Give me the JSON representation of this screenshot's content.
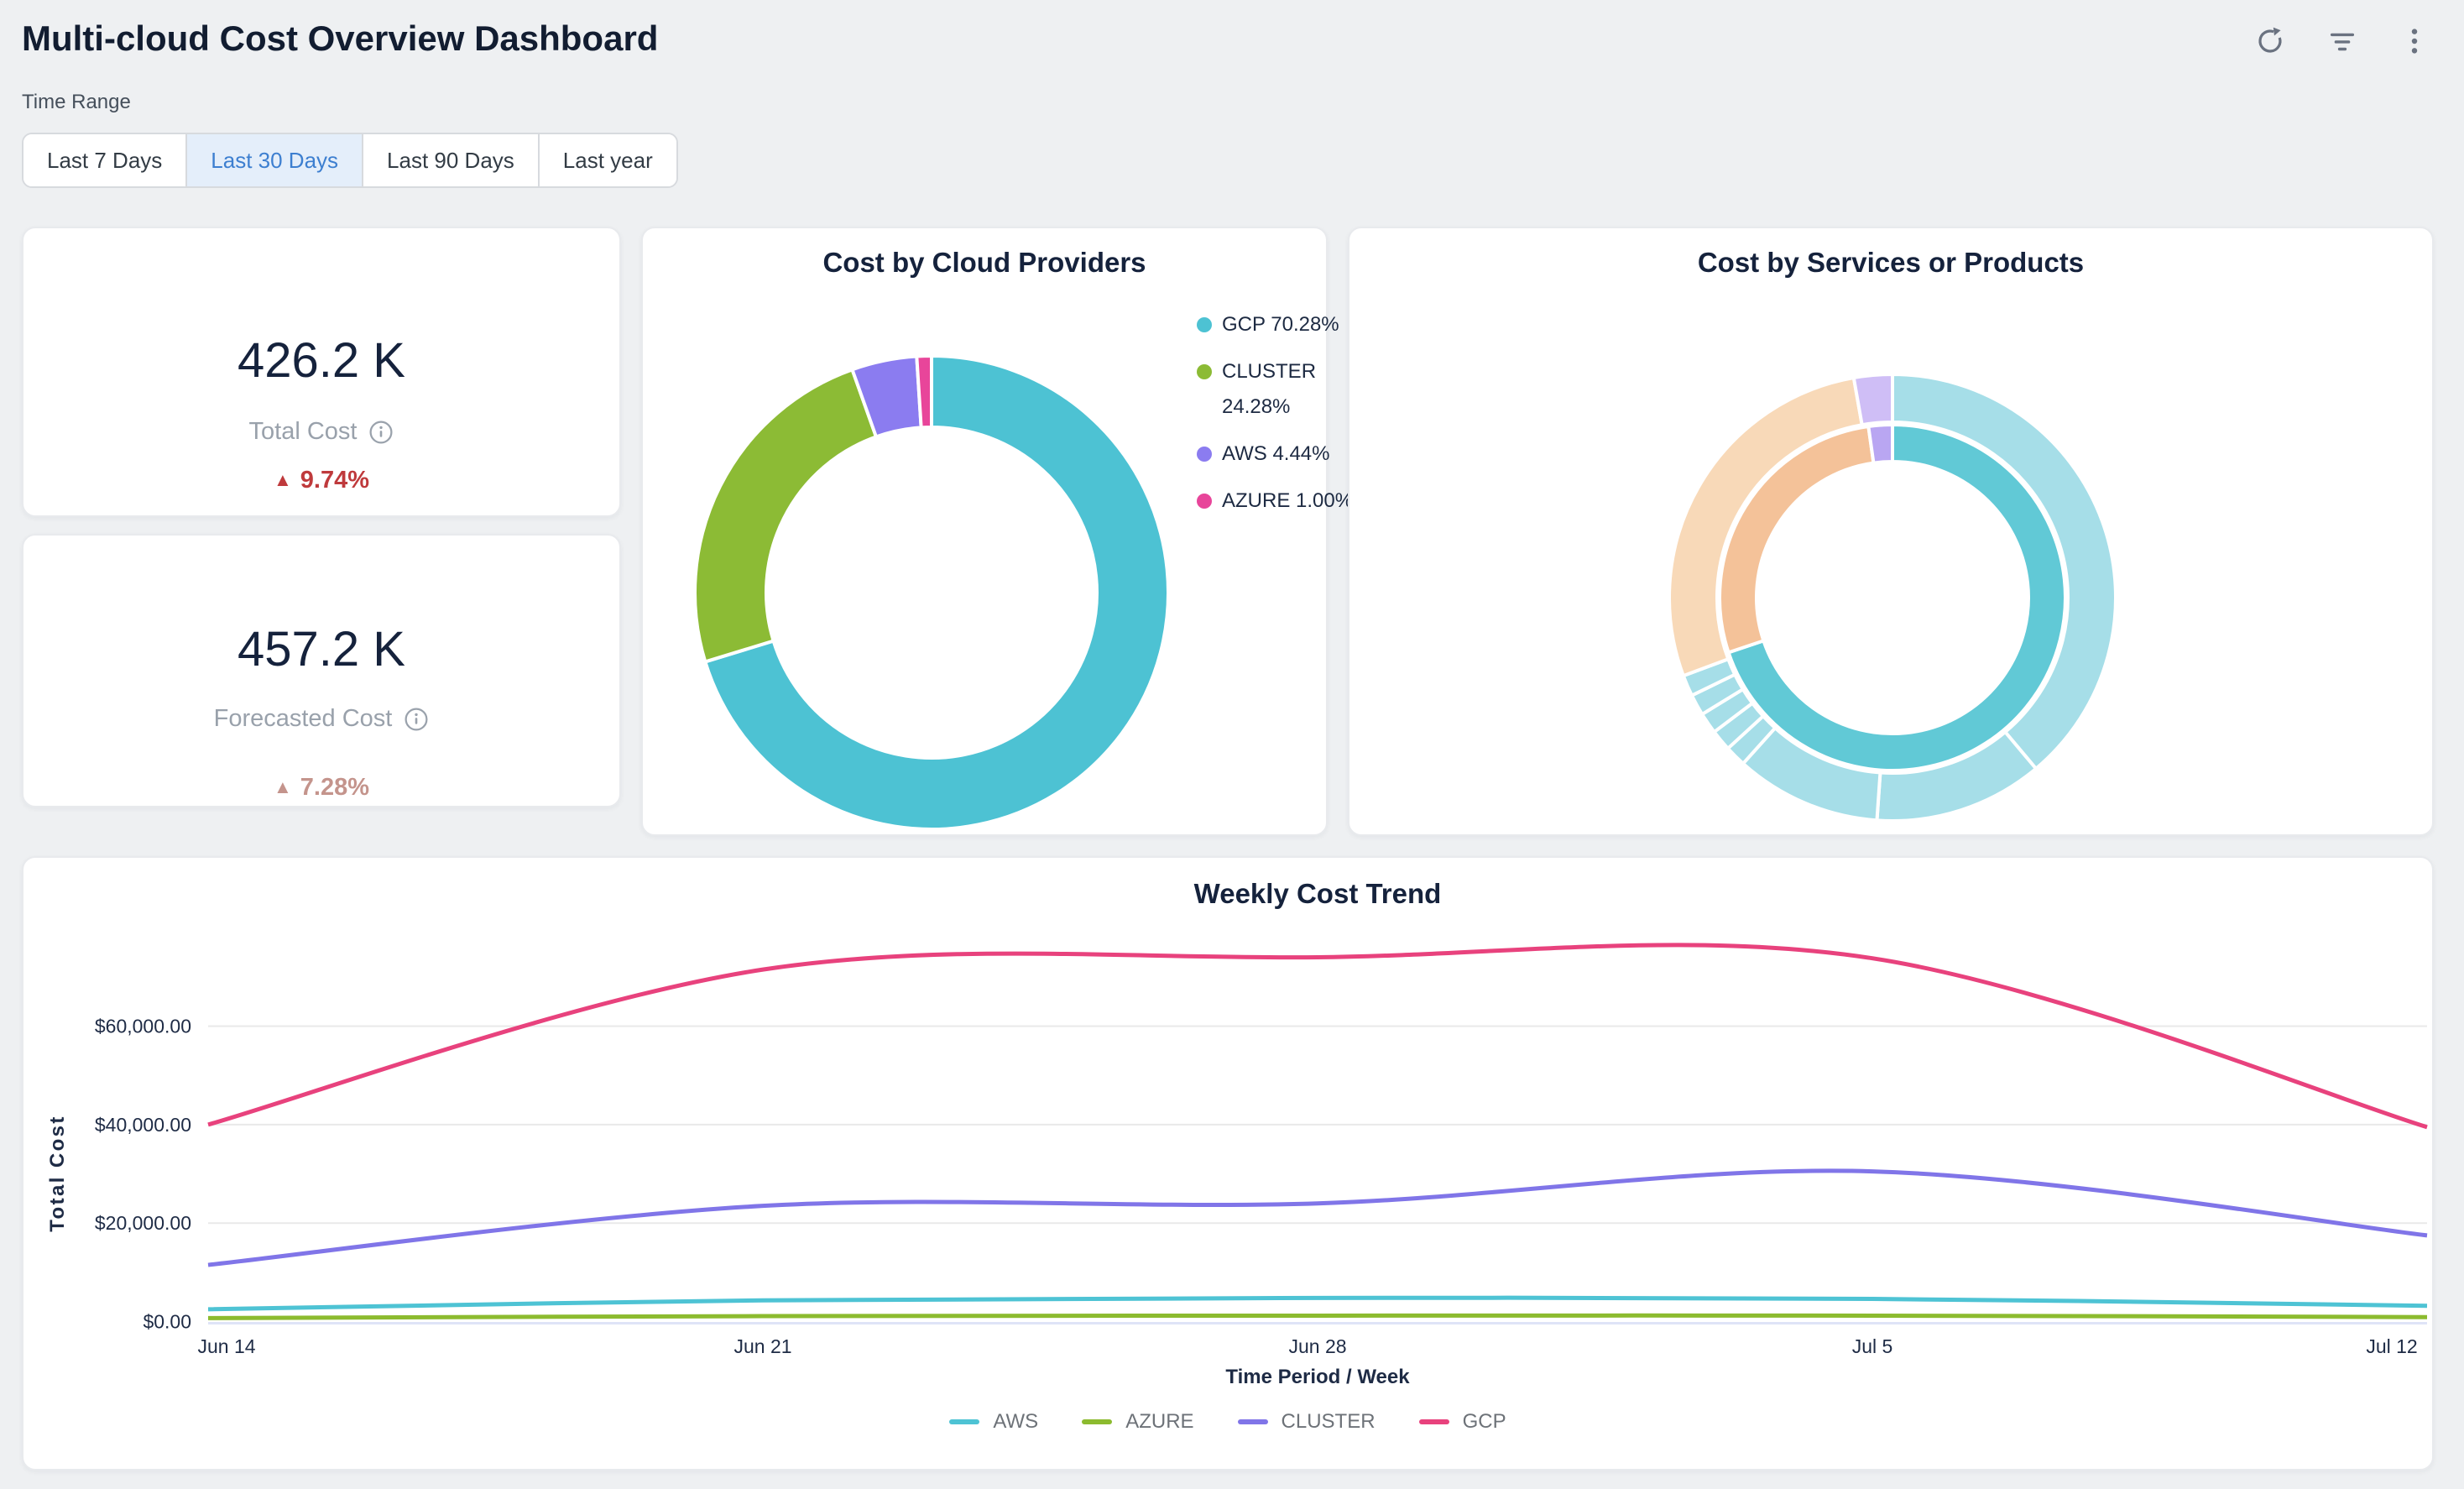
{
  "header": {
    "title": "Multi-cloud Cost Overview Dashboard",
    "icons": [
      "refresh",
      "filter",
      "kebab-menu"
    ]
  },
  "time_range": {
    "label": "Time Range",
    "options": [
      "Last 7 Days",
      "Last 30 Days",
      "Last 90 Days",
      "Last year"
    ],
    "selected": "Last 30 Days"
  },
  "kpis": [
    {
      "value": "426.2 K",
      "label": "Total Cost",
      "delta": "9.74%",
      "direction": "up",
      "delta_color": "#bf3a3c"
    },
    {
      "value": "457.2 K",
      "label": "Forecasted Cost",
      "delta": "7.28%",
      "direction": "up",
      "delta_color": "#c4948c"
    }
  ],
  "chart_data": [
    {
      "type": "pie",
      "variant": "donut",
      "title": "Cost by Cloud Providers",
      "categories": [
        "GCP",
        "CLUSTER",
        "AWS",
        "AZURE"
      ],
      "values": [
        70.28,
        24.28,
        4.44,
        1.0
      ],
      "unit": "percent",
      "colors": [
        "#4dc2d3",
        "#8cbb35",
        "#8b7cf0",
        "#e8459a"
      ],
      "legend_labels": [
        "GCP 70.28%",
        "CLUSTER 24.28%",
        "AWS 4.44%",
        "AZURE 1.00%"
      ],
      "legend_position": "right"
    },
    {
      "type": "pie",
      "variant": "sunburst",
      "title": "Cost by Services or Products",
      "rings": [
        {
          "level": "inner",
          "segments": [
            {
              "start": 0,
              "end": 251.5,
              "color": "#61c9d6"
            },
            {
              "start": 251.5,
              "end": 352,
              "color": "#f4c299"
            },
            {
              "start": 352,
              "end": 360,
              "color": "#b9a6f2"
            }
          ]
        },
        {
          "level": "outer",
          "segments": [
            {
              "start": 0,
              "end": 140,
              "color": "#a6dee8"
            },
            {
              "start": 140,
              "end": 184,
              "color": "#a6dee8"
            },
            {
              "start": 184,
              "end": 222,
              "color": "#a6dee8"
            },
            {
              "start": 222,
              "end": 227.5,
              "color": "#a6dee8"
            },
            {
              "start": 227.5,
              "end": 233,
              "color": "#a6dee8"
            },
            {
              "start": 233,
              "end": 238.5,
              "color": "#a6dee8"
            },
            {
              "start": 238.5,
              "end": 244,
              "color": "#a6dee8"
            },
            {
              "start": 244,
              "end": 249.5,
              "color": "#a6dee8"
            },
            {
              "start": 249.5,
              "end": 350,
              "color": "#f8d9b8"
            },
            {
              "start": 350,
              "end": 360,
              "color": "#cfbef6"
            }
          ]
        }
      ]
    },
    {
      "type": "line",
      "title": "Weekly Cost Trend",
      "x": [
        "Jun 14",
        "Jun 21",
        "Jun 28",
        "Jul 5",
        "Jul 12"
      ],
      "series": [
        {
          "name": "AWS",
          "color": "#4ec3d4",
          "values": [
            2500,
            4300,
            4800,
            4600,
            3200
          ]
        },
        {
          "name": "AZURE",
          "color": "#8cbb2f",
          "values": [
            700,
            1100,
            1200,
            1200,
            900
          ]
        },
        {
          "name": "CLUSTER",
          "color": "#8075e8",
          "values": [
            11500,
            23500,
            24000,
            30500,
            17500
          ]
        },
        {
          "name": "GCP",
          "color": "#e8427d",
          "values": [
            40000,
            71500,
            74000,
            73800,
            39500
          ]
        }
      ],
      "xlabel": "Time Period / Week",
      "ylabel": "Total Cost",
      "yticks": [
        0,
        20000,
        40000,
        60000
      ],
      "ytick_labels": [
        "$0.00",
        "$20,000.00",
        "$40,000.00",
        "$60,000.00"
      ],
      "ylim": [
        0,
        78000
      ],
      "grid": true,
      "legend_position": "bottom"
    }
  ]
}
